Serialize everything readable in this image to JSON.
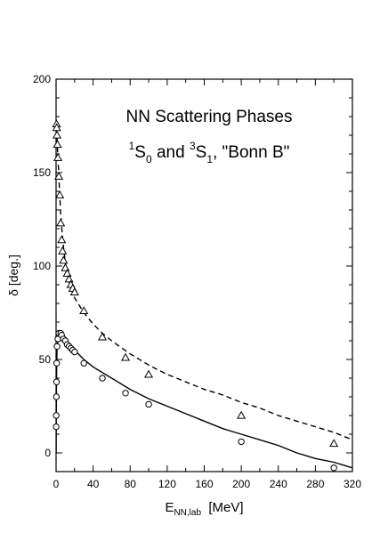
{
  "chart_data": {
    "type": "scatter",
    "title": {
      "line1": "NN Scattering Phases",
      "line2_parts": [
        {
          "text": "1",
          "style": "sup"
        },
        {
          "text": "S",
          "style": "normal"
        },
        {
          "text": "0",
          "style": "sub"
        },
        {
          "text": " and ",
          "style": "normal"
        },
        {
          "text": "3",
          "style": "sup"
        },
        {
          "text": "S",
          "style": "normal"
        },
        {
          "text": "1",
          "style": "sub"
        },
        {
          "text": ", \"Bonn B\"",
          "style": "normal"
        }
      ]
    },
    "xlabel": {
      "main": "E",
      "sub": "NN,lab",
      "unit": "[MeV]"
    },
    "ylabel": "δ  [deg.]",
    "xlim": [
      0,
      320
    ],
    "ylim": [
      -10,
      200
    ],
    "xticks": [
      0,
      40,
      80,
      120,
      160,
      200,
      240,
      280,
      320
    ],
    "yticks": [
      0,
      50,
      100,
      150,
      200
    ],
    "grid": false,
    "legend": "none",
    "series": [
      {
        "marker": "triangle",
        "line": "dashed",
        "points": [
          [
            0.5,
            176
          ],
          [
            0.7,
            174
          ],
          [
            1,
            170
          ],
          [
            1.5,
            165
          ],
          [
            2,
            158
          ],
          [
            3,
            148
          ],
          [
            4,
            138
          ],
          [
            5,
            123
          ],
          [
            6,
            114
          ],
          [
            7,
            108
          ],
          [
            8,
            103
          ],
          [
            10,
            99
          ],
          [
            12,
            96
          ],
          [
            14,
            93
          ],
          [
            16,
            90
          ],
          [
            18,
            88
          ],
          [
            20,
            86
          ],
          [
            30,
            76
          ],
          [
            50,
            62
          ],
          [
            75,
            51
          ],
          [
            100,
            42
          ],
          [
            200,
            20
          ],
          [
            300,
            5
          ]
        ],
        "curve": [
          [
            0.1,
            178
          ],
          [
            1,
            168
          ],
          [
            2,
            158
          ],
          [
            3,
            148
          ],
          [
            4,
            138
          ],
          [
            5,
            128
          ],
          [
            6,
            121
          ],
          [
            8,
            110
          ],
          [
            10,
            102
          ],
          [
            12,
            96
          ],
          [
            15,
            90
          ],
          [
            20,
            83
          ],
          [
            30,
            75
          ],
          [
            40,
            69
          ],
          [
            50,
            64
          ],
          [
            60,
            60
          ],
          [
            80,
            53
          ],
          [
            100,
            47
          ],
          [
            120,
            42
          ],
          [
            140,
            38
          ],
          [
            160,
            34
          ],
          [
            180,
            31
          ],
          [
            200,
            27
          ],
          [
            220,
            24
          ],
          [
            240,
            20
          ],
          [
            260,
            17
          ],
          [
            280,
            14
          ],
          [
            300,
            11
          ],
          [
            320,
            7
          ]
        ]
      },
      {
        "marker": "circle",
        "line": "solid",
        "points": [
          [
            0.1,
            14
          ],
          [
            0.2,
            20
          ],
          [
            0.3,
            30
          ],
          [
            0.5,
            38
          ],
          [
            0.7,
            48
          ],
          [
            1,
            57
          ],
          [
            2,
            61
          ],
          [
            3,
            64
          ],
          [
            5,
            64
          ],
          [
            6,
            63
          ],
          [
            8,
            61
          ],
          [
            10,
            60
          ],
          [
            12,
            58
          ],
          [
            14,
            57
          ],
          [
            16,
            56
          ],
          [
            18,
            55
          ],
          [
            20,
            54
          ],
          [
            30,
            48
          ],
          [
            50,
            40
          ],
          [
            75,
            32
          ],
          [
            100,
            26
          ],
          [
            200,
            6
          ],
          [
            300,
            -8
          ]
        ],
        "curve": [
          [
            0.05,
            0
          ],
          [
            0.2,
            20
          ],
          [
            0.4,
            36
          ],
          [
            0.7,
            48
          ],
          [
            1,
            55
          ],
          [
            2,
            61
          ],
          [
            3,
            63
          ],
          [
            5,
            63
          ],
          [
            7,
            62
          ],
          [
            10,
            60
          ],
          [
            15,
            57
          ],
          [
            20,
            55
          ],
          [
            30,
            50
          ],
          [
            40,
            46
          ],
          [
            50,
            43
          ],
          [
            60,
            40
          ],
          [
            80,
            34
          ],
          [
            100,
            29
          ],
          [
            120,
            25
          ],
          [
            140,
            21
          ],
          [
            160,
            17
          ],
          [
            180,
            13
          ],
          [
            200,
            10
          ],
          [
            220,
            7
          ],
          [
            240,
            4
          ],
          [
            260,
            0
          ],
          [
            280,
            -3
          ],
          [
            300,
            -5
          ],
          [
            320,
            -8
          ]
        ]
      }
    ]
  }
}
